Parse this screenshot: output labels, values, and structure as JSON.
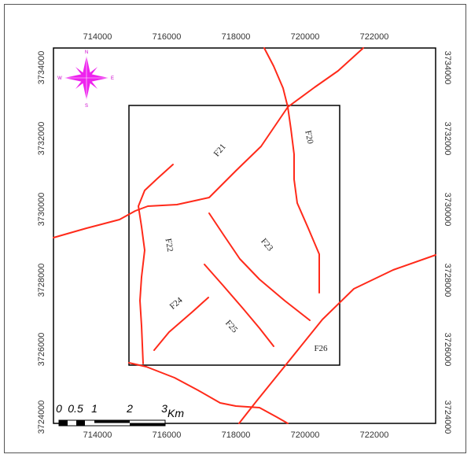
{
  "map": {
    "x_ticks": [
      "714000",
      "716000",
      "718000",
      "720000",
      "722000"
    ],
    "y_ticks": [
      "3734000",
      "3732000",
      "3730000",
      "3728000",
      "3726000",
      "3724000"
    ],
    "fault_labels": [
      "F20",
      "F21",
      "F22",
      "F23",
      "F24",
      "F25",
      "F26"
    ],
    "compass": {
      "n": "N",
      "e": "E",
      "s": "S",
      "w": "W",
      "color": "#ee22ee"
    },
    "scale_bar": {
      "labels": [
        "0",
        "0.5",
        "1",
        "2",
        "3"
      ],
      "unit": "Km"
    },
    "fault_color": "#ff2a1a"
  }
}
